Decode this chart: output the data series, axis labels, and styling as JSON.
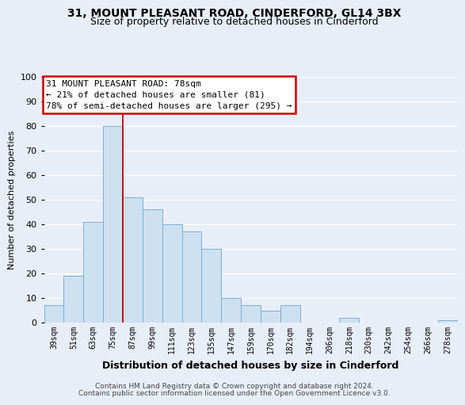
{
  "title_line1": "31, MOUNT PLEASANT ROAD, CINDERFORD, GL14 3BX",
  "title_line2": "Size of property relative to detached houses in Cinderford",
  "xlabel": "Distribution of detached houses by size in Cinderford",
  "ylabel": "Number of detached properties",
  "bar_color": "#cde0f0",
  "bar_edge_color": "#7bafd4",
  "background_color": "#e8eef8",
  "grid_color": "#ffffff",
  "annotation_box_color": "#ffffff",
  "annotation_box_edge_color": "#cc0000",
  "property_line_color": "#cc0000",
  "bin_labels": [
    "39sqm",
    "51sqm",
    "63sqm",
    "75sqm",
    "87sqm",
    "99sqm",
    "111sqm",
    "123sqm",
    "135sqm",
    "147sqm",
    "159sqm",
    "170sqm",
    "182sqm",
    "194sqm",
    "206sqm",
    "218sqm",
    "230sqm",
    "242sqm",
    "254sqm",
    "266sqm",
    "278sqm"
  ],
  "bar_heights": [
    7,
    19,
    41,
    80,
    51,
    46,
    40,
    37,
    30,
    10,
    7,
    5,
    7,
    0,
    0,
    2,
    0,
    0,
    0,
    0,
    1
  ],
  "property_bin_index": 3,
  "ylim": [
    0,
    100
  ],
  "yticks": [
    0,
    10,
    20,
    30,
    40,
    50,
    60,
    70,
    80,
    90,
    100
  ],
  "annotation_title": "31 MOUNT PLEASANT ROAD: 78sqm",
  "annotation_line1": "← 21% of detached houses are smaller (81)",
  "annotation_line2": "78% of semi-detached houses are larger (295) →",
  "footer_line1": "Contains HM Land Registry data © Crown copyright and database right 2024.",
  "footer_line2": "Contains public sector information licensed under the Open Government Licence v3.0."
}
